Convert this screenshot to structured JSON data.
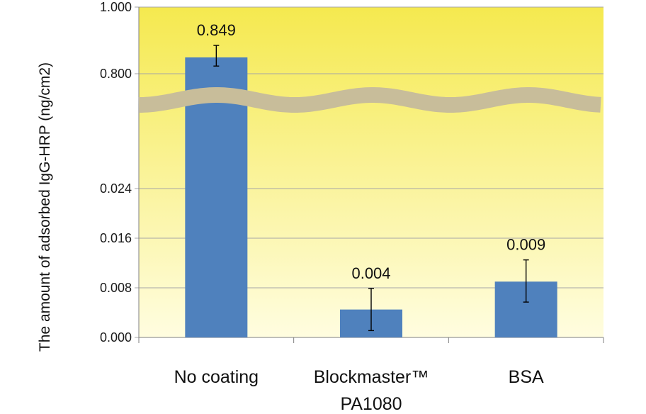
{
  "chart_data": {
    "type": "bar",
    "title": "",
    "xlabel": "",
    "ylabel": "The amount of adsorbed IgG-HRP (ng/cm2)",
    "axis_break": true,
    "y_ticks_lower": [
      "0.000",
      "0.008",
      "0.016",
      "0.024"
    ],
    "y_ticks_upper": [
      "0.800",
      "1.000"
    ],
    "lower_range": [
      0,
      0.032
    ],
    "upper_range": [
      0.7,
      1.0
    ],
    "categories": [
      {
        "lines": [
          "No coating"
        ]
      },
      {
        "lines": [
          "Blockmaster™",
          "PA1080"
        ]
      },
      {
        "lines": [
          "BSA"
        ]
      }
    ],
    "values": [
      0.849,
      0.0045,
      0.009
    ],
    "value_labels": [
      "0.849",
      "0.004",
      "0.009"
    ],
    "error_low": [
      0.823,
      0.0011,
      0.0057
    ],
    "error_high": [
      0.885,
      0.0079,
      0.0125
    ],
    "colors": {
      "bar": "#4f81bd",
      "plot_bg_top": "#f5e94f",
      "plot_bg_bottom": "#fffde0",
      "grid": "#a6a6a6",
      "break_band": "#c8bd9a"
    },
    "grid": true,
    "legend": "none"
  }
}
